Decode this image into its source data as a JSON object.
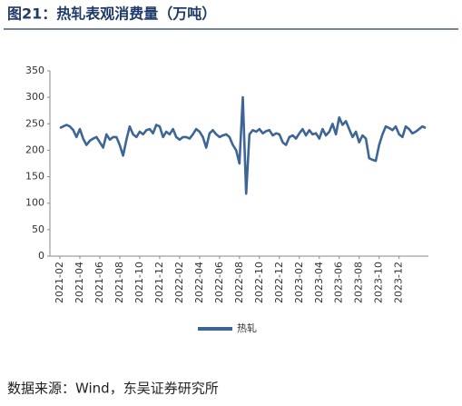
{
  "header": {
    "title": "图21：热轧表观消费量（万吨）"
  },
  "chart_data": {
    "type": "line",
    "categories": [
      "2021-02",
      null,
      null,
      null,
      null,
      null,
      "2021-04",
      null,
      null,
      null,
      null,
      null,
      "2021-06",
      null,
      null,
      null,
      null,
      null,
      "2021-08",
      null,
      null,
      null,
      null,
      null,
      "2021-10",
      null,
      null,
      null,
      null,
      null,
      "2021-12",
      null,
      null,
      null,
      null,
      null,
      "2022-02",
      null,
      null,
      null,
      null,
      null,
      "2022-04",
      null,
      null,
      null,
      null,
      null,
      "2022-06",
      null,
      null,
      null,
      null,
      null,
      "2022-08",
      null,
      null,
      null,
      null,
      null,
      "2022-10",
      null,
      null,
      null,
      null,
      null,
      "2022-12",
      null,
      null,
      null,
      null,
      null,
      "2023-02",
      null,
      null,
      null,
      null,
      null,
      "2023-04",
      null,
      null,
      null,
      null,
      null,
      "2023-06",
      null,
      null,
      null,
      null,
      null,
      "2023-08",
      null,
      null,
      null,
      null,
      null,
      "2023-10",
      null,
      null,
      null,
      null,
      null,
      "2023-12",
      null,
      null,
      null,
      null,
      null,
      null,
      null,
      null
    ],
    "series": [
      {
        "name": "热轧",
        "color": "#3d6696",
        "values": [
          242,
          245,
          248,
          245,
          238,
          225,
          240,
          222,
          210,
          218,
          222,
          225,
          215,
          205,
          230,
          220,
          225,
          225,
          210,
          190,
          220,
          245,
          230,
          225,
          235,
          230,
          238,
          240,
          232,
          248,
          245,
          225,
          235,
          230,
          240,
          225,
          220,
          225,
          225,
          222,
          230,
          240,
          235,
          225,
          205,
          232,
          238,
          230,
          225,
          228,
          230,
          225,
          210,
          200,
          175,
          300,
          118,
          230,
          238,
          235,
          240,
          232,
          236,
          238,
          228,
          232,
          230,
          215,
          210,
          225,
          228,
          222,
          232,
          240,
          228,
          238,
          230,
          232,
          222,
          240,
          228,
          235,
          250,
          230,
          262,
          248,
          255,
          240,
          225,
          235,
          215,
          228,
          222,
          185,
          182,
          180,
          210,
          230,
          245,
          242,
          238,
          245,
          230,
          225,
          245,
          240,
          232,
          235,
          240,
          245,
          242
        ]
      }
    ],
    "ylim": [
      0,
      350
    ],
    "yticks": [
      0,
      50,
      100,
      150,
      200,
      250,
      300,
      350
    ]
  },
  "footer": {
    "source": "数据来源：Wind，东吴证券研究所"
  }
}
